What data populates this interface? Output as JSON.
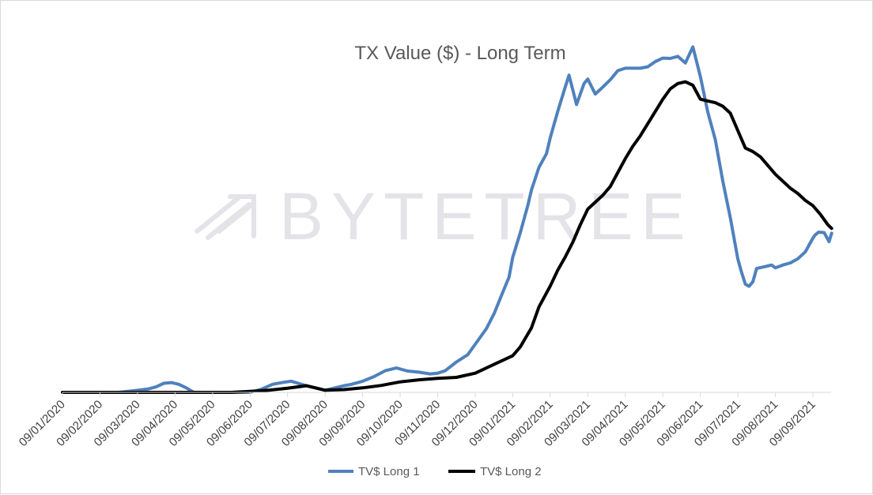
{
  "watermark": {
    "text": "BYTETREE"
  },
  "chart_data": {
    "type": "line",
    "title": "TX Value ($) - Long Term",
    "xlabel": "",
    "ylabel": "",
    "y_axis_labels_shown": false,
    "grid": false,
    "legend_position": "bottom",
    "x_dates": [
      "09/01/2020",
      "09/02/2020",
      "09/03/2020",
      "09/04/2020",
      "09/05/2020",
      "09/06/2020",
      "09/07/2020",
      "09/08/2020",
      "09/09/2020",
      "09/10/2020",
      "09/11/2020",
      "09/12/2020",
      "09/01/2021",
      "09/02/2021",
      "09/03/2021",
      "09/04/2021",
      "09/05/2021",
      "09/06/2021",
      "09/07/2021",
      "09/08/2021",
      "09/09/2021"
    ],
    "x_end": "09/19/2021",
    "ylim": [
      0,
      100
    ],
    "series": [
      {
        "name": "TV$ Long 1",
        "color": "#4f81bd",
        "x_index": [
          0,
          1,
          1.5,
          2,
          2.3,
          2.5,
          2.7,
          2.9,
          3.1,
          3.3,
          3.5,
          4,
          4.5,
          5,
          5.3,
          5.6,
          5.9,
          6.1,
          6.5,
          7,
          7.5,
          7.7,
          8,
          8.3,
          8.6,
          8.9,
          9.2,
          9.5,
          9.8,
          10,
          10.2,
          10.5,
          10.8,
          11,
          11.3,
          11.5,
          11.7,
          11.9,
          12,
          12.2,
          12.4,
          12.5,
          12.7,
          12.9,
          13,
          13.2,
          13.4,
          13.5,
          13.7,
          13.9,
          14,
          14.2,
          14.4,
          14.6,
          14.8,
          15,
          15.2,
          15.4,
          15.6,
          15.8,
          16,
          16.2,
          16.4,
          16.6,
          16.8,
          17,
          17.2,
          17.4,
          17.6,
          17.8,
          18,
          18.1,
          18.2,
          18.3,
          18.4,
          18.5,
          18.7,
          18.9,
          19,
          19.2,
          19.4,
          19.6,
          19.8,
          20,
          20.05,
          20.15,
          20.3,
          20.43,
          20.5
        ],
        "values": [
          0,
          0,
          0,
          0.6,
          1,
          1.6,
          2.6,
          2.8,
          2.3,
          1.3,
          0,
          0,
          0,
          0,
          0.9,
          2.3,
          2.9,
          3.2,
          1.9,
          0.6,
          1.9,
          2.3,
          3.2,
          4.5,
          6.2,
          7,
          6.1,
          5.8,
          5.3,
          5.5,
          6.2,
          8.7,
          10.8,
          13.8,
          18.3,
          22.5,
          27.8,
          33,
          38.7,
          45.7,
          53.5,
          58,
          64.5,
          68.4,
          73,
          80.5,
          87.5,
          90.9,
          82.5,
          88.5,
          89.8,
          85.5,
          87.5,
          89.6,
          92.2,
          92.9,
          92.9,
          92.9,
          93.3,
          94.8,
          95.8,
          95.7,
          96.3,
          94.4,
          99,
          90.5,
          80.3,
          72.4,
          60.5,
          50,
          38.2,
          34.4,
          31,
          30.4,
          31.7,
          35.5,
          36,
          36.5,
          35.7,
          36.5,
          37.1,
          38.3,
          40.3,
          44.2,
          45,
          45.9,
          45.8,
          43.2,
          45.6
        ]
      },
      {
        "name": "TV$ Long 2",
        "color": "#000000",
        "x_index": [
          0,
          1,
          2,
          3,
          4,
          4.5,
          5,
          5.5,
          6,
          6.5,
          7,
          7.5,
          8,
          8.5,
          9,
          9.5,
          10,
          10.5,
          11,
          11.5,
          12,
          12.2,
          12.5,
          12.7,
          13,
          13.2,
          13.4,
          13.6,
          13.8,
          14,
          14.2,
          14.4,
          14.6,
          14.8,
          15,
          15.2,
          15.4,
          15.6,
          15.8,
          16,
          16.2,
          16.4,
          16.6,
          16.8,
          17,
          17.2,
          17.4,
          17.6,
          17.8,
          18,
          18.2,
          18.4,
          18.6,
          18.8,
          19,
          19.2,
          19.4,
          19.6,
          19.8,
          20,
          20.2,
          20.4,
          20.5
        ],
        "values": [
          0,
          0,
          0,
          0,
          0,
          0,
          0.3,
          0.6,
          1.2,
          1.9,
          0.6,
          0.8,
          1.3,
          2,
          3,
          3.6,
          4,
          4.3,
          5.5,
          8,
          10.5,
          13,
          18.5,
          24.5,
          30.5,
          35,
          38.8,
          43,
          48,
          52.5,
          54.5,
          56.5,
          59,
          63,
          67,
          70.5,
          73.5,
          77,
          80.5,
          84,
          87,
          88.5,
          89,
          88,
          84,
          83.5,
          83,
          82,
          80,
          75,
          70,
          69,
          67.5,
          65,
          62.5,
          60.5,
          58.5,
          57,
          55,
          53.5,
          51,
          48,
          47
        ]
      }
    ]
  }
}
